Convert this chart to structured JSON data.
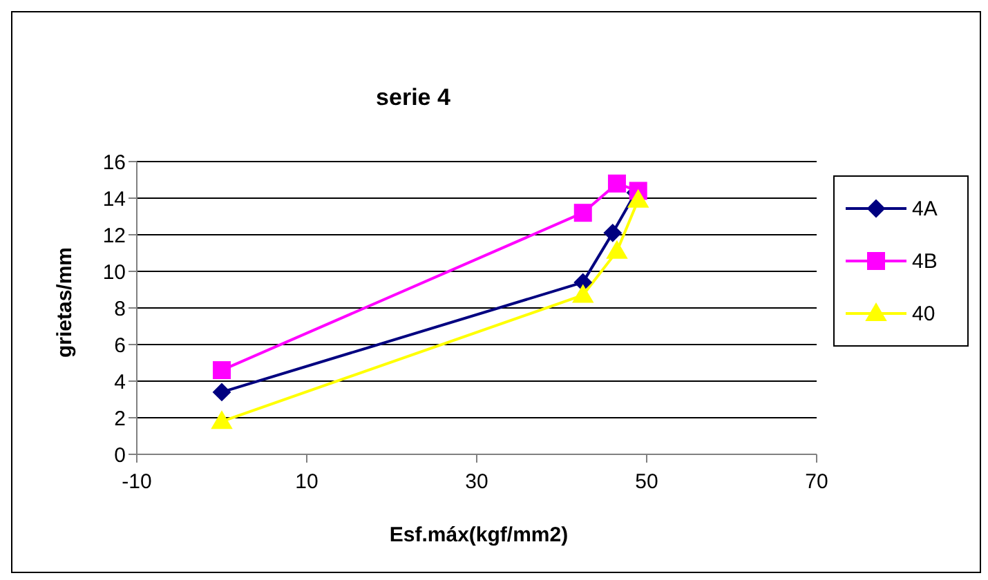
{
  "chart_data": {
    "type": "line",
    "title": "serie 4",
    "xlabel": "Esf.máx(kgf/mm2)",
    "ylabel": "grietas/mm",
    "xlim": [
      -10,
      70
    ],
    "xticks": [
      -10,
      10,
      30,
      50,
      70
    ],
    "ylim": [
      0,
      16
    ],
    "yticks": [
      0,
      2,
      4,
      6,
      8,
      10,
      12,
      14,
      16
    ],
    "grid": "y",
    "legend": "right",
    "series": [
      {
        "name": "4A",
        "color": "#000080",
        "marker": "diamond",
        "x": [
          0,
          42.5,
          46,
          48.7
        ],
        "values": [
          3.4,
          9.4,
          12.1,
          14.3
        ]
      },
      {
        "name": "4B",
        "color": "#ff00ff",
        "marker": "square",
        "x": [
          0,
          42.5,
          46.5,
          49
        ],
        "values": [
          4.6,
          13.2,
          14.8,
          14.4
        ]
      },
      {
        "name": "40",
        "color": "#ffff00",
        "marker": "triangle",
        "x": [
          0,
          42.5,
          46.5,
          49
        ],
        "values": [
          1.8,
          8.7,
          11.1,
          13.9
        ]
      }
    ]
  }
}
